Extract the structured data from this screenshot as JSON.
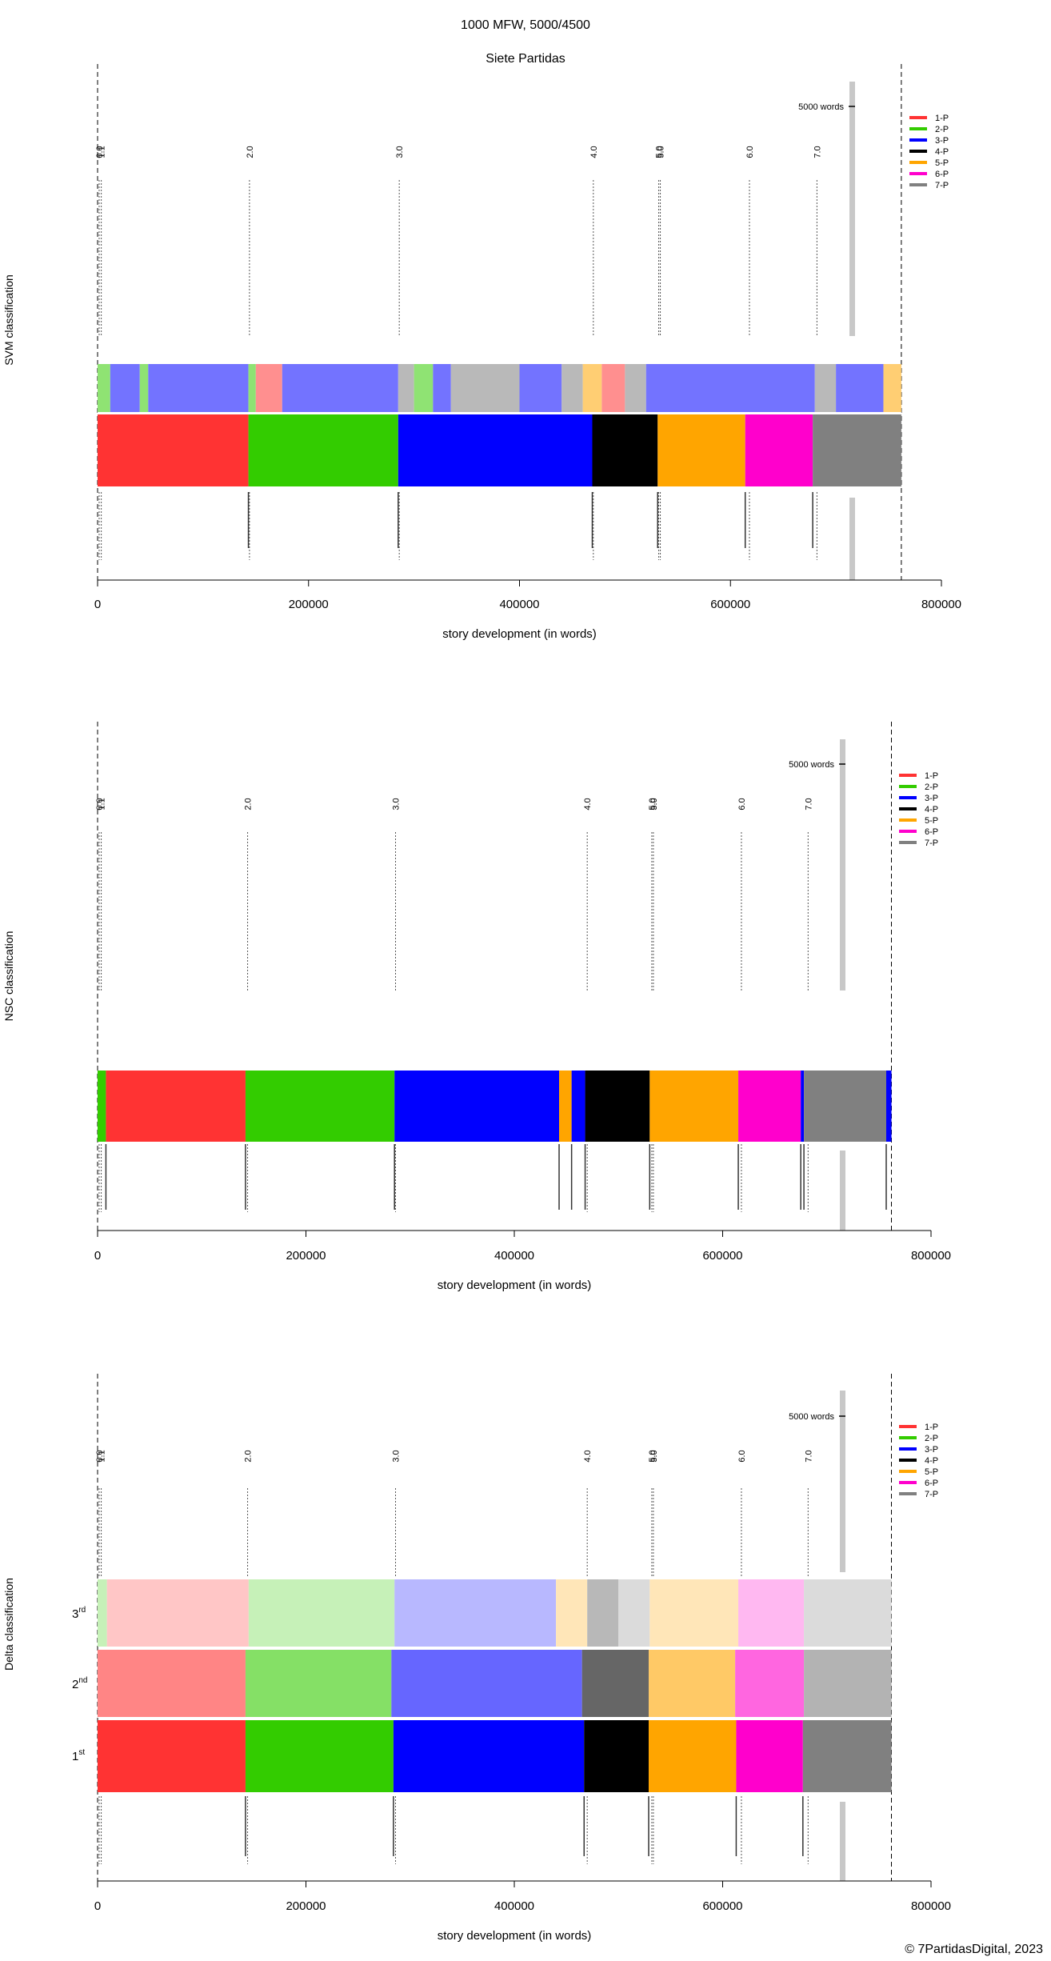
{
  "figure": {
    "title": "1000 MFW, 5000/4500",
    "subtitle": "Siete Partidas",
    "footer": "© 7PartidasDigital, 2023"
  },
  "chart_data": [
    {
      "type": "bar",
      "id": "svm",
      "ylabel": "SVM classification",
      "xlabel": "story development (in words)",
      "xlim": [
        0,
        800000
      ],
      "xticks": [
        0,
        200000,
        400000,
        600000,
        800000
      ],
      "xtick_labels": [
        "0",
        "200000",
        "400000",
        "600000",
        "800000"
      ],
      "window_label": "5000 words",
      "text_end": 762000,
      "legend": [
        {
          "name": "1-P",
          "color": "#ff3333"
        },
        {
          "name": "2-P",
          "color": "#33cc00"
        },
        {
          "name": "3-P",
          "color": "#0000ff"
        },
        {
          "name": "4-P",
          "color": "#000000"
        },
        {
          "name": "5-P",
          "color": "#ffa500"
        },
        {
          "name": "6-P",
          "color": "#ff00cc"
        },
        {
          "name": "7-P",
          "color": "#808080"
        }
      ],
      "section_markers": [
        {
          "label": "0.0",
          "x": 1500
        },
        {
          "label": "1.1",
          "x": 3500
        },
        {
          "label": "2.0",
          "x": 144000
        },
        {
          "label": "3.0",
          "x": 286000
        },
        {
          "label": "4.0",
          "x": 470000
        },
        {
          "label": "5.0",
          "x": 532000
        },
        {
          "label": "5.0",
          "x": 533500
        },
        {
          "label": "6.0",
          "x": 618000
        },
        {
          "label": "7.0",
          "x": 682000
        }
      ],
      "true_segments": [
        {
          "from": 0,
          "to": 143000,
          "class": "1-P"
        },
        {
          "from": 143000,
          "to": 285000,
          "class": "2-P"
        },
        {
          "from": 285000,
          "to": 469000,
          "class": "3-P"
        },
        {
          "from": 469000,
          "to": 531000,
          "class": "4-P"
        },
        {
          "from": 531000,
          "to": 614000,
          "class": "5-P"
        },
        {
          "from": 614000,
          "to": 678000,
          "class": "6-P"
        },
        {
          "from": 678000,
          "to": 762000,
          "class": "7-P"
        }
      ],
      "classification": [
        {
          "from": 0,
          "to": 12000,
          "class": "2-P"
        },
        {
          "from": 12000,
          "to": 40000,
          "class": "3-P"
        },
        {
          "from": 40000,
          "to": 48000,
          "class": "2-P"
        },
        {
          "from": 48000,
          "to": 143000,
          "class": "3-P"
        },
        {
          "from": 143000,
          "to": 150000,
          "class": "2-P"
        },
        {
          "from": 150000,
          "to": 175000,
          "class": "1-P"
        },
        {
          "from": 175000,
          "to": 285000,
          "class": "3-P"
        },
        {
          "from": 285000,
          "to": 300000,
          "class": "7-P"
        },
        {
          "from": 300000,
          "to": 318000,
          "class": "2-P"
        },
        {
          "from": 318000,
          "to": 335000,
          "class": "3-P"
        },
        {
          "from": 335000,
          "to": 400000,
          "class": "7-P"
        },
        {
          "from": 400000,
          "to": 440000,
          "class": "3-P"
        },
        {
          "from": 440000,
          "to": 460000,
          "class": "7-P"
        },
        {
          "from": 460000,
          "to": 478000,
          "class": "5-P"
        },
        {
          "from": 478000,
          "to": 500000,
          "class": "1-P"
        },
        {
          "from": 500000,
          "to": 520000,
          "class": "7-P"
        },
        {
          "from": 520000,
          "to": 680000,
          "class": "3-P"
        },
        {
          "from": 680000,
          "to": 700000,
          "class": "7-P"
        },
        {
          "from": 700000,
          "to": 745000,
          "class": "3-P"
        },
        {
          "from": 745000,
          "to": 762000,
          "class": "5-P"
        }
      ]
    },
    {
      "type": "bar",
      "id": "nsc",
      "ylabel": "NSC classification",
      "xlabel": "story development (in words)",
      "xlim": [
        0,
        800000
      ],
      "xticks": [
        0,
        200000,
        400000,
        600000,
        800000
      ],
      "xtick_labels": [
        "0",
        "200000",
        "400000",
        "600000",
        "800000"
      ],
      "window_label": "5000 words",
      "text_end": 762000,
      "legend": [
        {
          "name": "1-P",
          "color": "#ff3333"
        },
        {
          "name": "2-P",
          "color": "#33cc00"
        },
        {
          "name": "3-P",
          "color": "#0000ff"
        },
        {
          "name": "4-P",
          "color": "#000000"
        },
        {
          "name": "5-P",
          "color": "#ffa500"
        },
        {
          "name": "6-P",
          "color": "#ff00cc"
        },
        {
          "name": "7-P",
          "color": "#808080"
        }
      ],
      "section_markers": [
        {
          "label": "0.0",
          "x": 1500
        },
        {
          "label": "1.1",
          "x": 3500
        },
        {
          "label": "2.0",
          "x": 144000
        },
        {
          "label": "3.0",
          "x": 286000
        },
        {
          "label": "4.0",
          "x": 470000
        },
        {
          "label": "5.0",
          "x": 532000
        },
        {
          "label": "5.0",
          "x": 533500
        },
        {
          "label": "6.0",
          "x": 618000
        },
        {
          "label": "7.0",
          "x": 682000
        }
      ],
      "classification": [
        {
          "from": 0,
          "to": 8000,
          "class": "2-P"
        },
        {
          "from": 8000,
          "to": 142000,
          "class": "1-P"
        },
        {
          "from": 142000,
          "to": 285000,
          "class": "2-P"
        },
        {
          "from": 285000,
          "to": 443000,
          "class": "3-P"
        },
        {
          "from": 443000,
          "to": 455000,
          "class": "5-P"
        },
        {
          "from": 455000,
          "to": 468000,
          "class": "3-P"
        },
        {
          "from": 468000,
          "to": 530000,
          "class": "4-P"
        },
        {
          "from": 530000,
          "to": 615000,
          "class": "5-P"
        },
        {
          "from": 615000,
          "to": 675000,
          "class": "6-P"
        },
        {
          "from": 675000,
          "to": 678000,
          "class": "3-P"
        },
        {
          "from": 678000,
          "to": 757000,
          "class": "7-P"
        },
        {
          "from": 757000,
          "to": 762000,
          "class": "3-P"
        }
      ]
    },
    {
      "type": "bar",
      "id": "delta",
      "ylabel": "Delta classification",
      "xlabel": "story development (in words)",
      "xlim": [
        0,
        800000
      ],
      "xticks": [
        0,
        200000,
        400000,
        600000,
        800000
      ],
      "xtick_labels": [
        "0",
        "200000",
        "400000",
        "600000",
        "800000"
      ],
      "window_label": "5000 words",
      "text_end": 762000,
      "legend": [
        {
          "name": "1-P",
          "color": "#ff3333"
        },
        {
          "name": "2-P",
          "color": "#33cc00"
        },
        {
          "name": "3-P",
          "color": "#0000ff"
        },
        {
          "name": "4-P",
          "color": "#000000"
        },
        {
          "name": "5-P",
          "color": "#ffa500"
        },
        {
          "name": "6-P",
          "color": "#ff00cc"
        },
        {
          "name": "7-P",
          "color": "#808080"
        }
      ],
      "section_markers": [
        {
          "label": "0.0",
          "x": 1500
        },
        {
          "label": "1.1",
          "x": 3500
        },
        {
          "label": "2.0",
          "x": 144000
        },
        {
          "label": "3.0",
          "x": 286000
        },
        {
          "label": "4.0",
          "x": 470000
        },
        {
          "label": "5.0",
          "x": 532000
        },
        {
          "label": "5.0",
          "x": 533500
        },
        {
          "label": "6.0",
          "x": 618000
        },
        {
          "label": "7.0",
          "x": 682000
        }
      ],
      "rank_labels": [
        {
          "base": "1",
          "sup": "st"
        },
        {
          "base": "2",
          "sup": "nd"
        },
        {
          "base": "3",
          "sup": "rd"
        }
      ],
      "ranks": [
        {
          "rank": "1st",
          "segments": [
            {
              "from": 0,
              "to": 142000,
              "class": "1-P"
            },
            {
              "from": 142000,
              "to": 284000,
              "class": "2-P"
            },
            {
              "from": 284000,
              "to": 467000,
              "class": "3-P"
            },
            {
              "from": 467000,
              "to": 529000,
              "class": "4-P"
            },
            {
              "from": 529000,
              "to": 613000,
              "class": "5-P"
            },
            {
              "from": 613000,
              "to": 677000,
              "class": "6-P"
            },
            {
              "from": 677000,
              "to": 762000,
              "class": "7-P"
            }
          ]
        },
        {
          "rank": "2nd",
          "segments": [
            {
              "from": 0,
              "to": 142000,
              "class": "1-P"
            },
            {
              "from": 142000,
              "to": 282000,
              "class": "2-P"
            },
            {
              "from": 282000,
              "to": 465000,
              "class": "3-P"
            },
            {
              "from": 465000,
              "to": 529000,
              "class": "4-P"
            },
            {
              "from": 529000,
              "to": 612000,
              "class": "5-P"
            },
            {
              "from": 612000,
              "to": 678000,
              "class": "6-P"
            },
            {
              "from": 678000,
              "to": 762000,
              "class": "7-P"
            }
          ]
        },
        {
          "rank": "3rd",
          "segments": [
            {
              "from": 0,
              "to": 9000,
              "class": "2-P"
            },
            {
              "from": 9000,
              "to": 145000,
              "class": "1-P"
            },
            {
              "from": 145000,
              "to": 285000,
              "class": "2-P"
            },
            {
              "from": 285000,
              "to": 440000,
              "class": "3-P"
            },
            {
              "from": 440000,
              "to": 470000,
              "class": "5-P"
            },
            {
              "from": 470000,
              "to": 500000,
              "class": "4-P"
            },
            {
              "from": 500000,
              "to": 530000,
              "class": "7-P"
            },
            {
              "from": 530000,
              "to": 615000,
              "class": "5-P"
            },
            {
              "from": 615000,
              "to": 678000,
              "class": "6-P"
            },
            {
              "from": 678000,
              "to": 762000,
              "class": "7-P"
            }
          ]
        }
      ]
    }
  ]
}
